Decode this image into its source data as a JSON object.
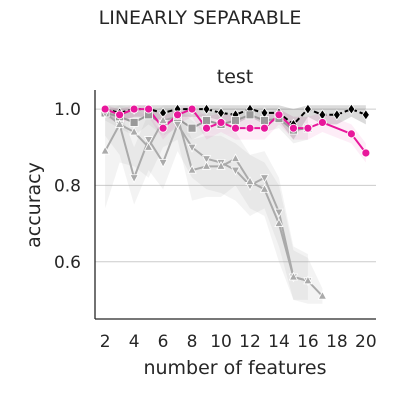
{
  "figure_title": "LINEARLY SEPARABLE",
  "chart_data": {
    "type": "line",
    "title": "test",
    "xlabel": "number of features",
    "ylabel": "accuracy",
    "xlim": [
      1.3,
      20.7
    ],
    "ylim": [
      0.45,
      1.05
    ],
    "xticks": [
      2,
      4,
      6,
      8,
      10,
      12,
      14,
      16,
      18,
      20
    ],
    "yticks": [
      0.6,
      0.8,
      1.0
    ],
    "ytick_labels": [
      "0.6",
      "0.8",
      "1.0"
    ],
    "grid": "horizontal",
    "series": [
      {
        "color": "#000000",
        "marker": "diamond",
        "linestyle": "dashed",
        "x": [
          2,
          3,
          4,
          5,
          6,
          7,
          8,
          9,
          10,
          11,
          12,
          13,
          14,
          15,
          16,
          17,
          18,
          19,
          20
        ],
        "values": [
          1.0,
          0.99,
          1.0,
          1.0,
          0.99,
          1.0,
          1.0,
          1.0,
          0.99,
          0.985,
          1.0,
          0.99,
          0.99,
          0.96,
          1.0,
          0.985,
          0.985,
          1.0,
          0.985
        ],
        "band_lo": [
          0.98,
          0.97,
          0.98,
          0.98,
          0.97,
          0.98,
          0.98,
          0.98,
          0.97,
          0.96,
          0.98,
          0.96,
          0.97,
          0.92,
          0.98,
          0.96,
          0.96,
          0.98,
          0.96
        ],
        "band_hi": [
          1.01,
          1.01,
          1.01,
          1.01,
          1.01,
          1.01,
          1.01,
          1.01,
          1.01,
          1.01,
          1.01,
          1.01,
          1.01,
          1.0,
          1.01,
          1.01,
          1.01,
          1.01,
          1.01
        ]
      },
      {
        "color": "#999999",
        "marker": "square",
        "linestyle": "solid",
        "x": [
          2,
          3,
          4,
          5,
          6,
          7,
          8,
          9,
          10,
          11,
          12,
          13,
          14,
          15,
          16
        ],
        "values": [
          0.99,
          0.98,
          0.965,
          0.985,
          0.96,
          0.975,
          0.95,
          0.97,
          0.96,
          0.97,
          0.985,
          0.97,
          0.975,
          0.945,
          0.95
        ],
        "band_lo": [
          0.97,
          0.95,
          0.93,
          0.96,
          0.93,
          0.95,
          0.92,
          0.94,
          0.93,
          0.94,
          0.96,
          0.94,
          0.95,
          0.91,
          0.92
        ],
        "band_hi": [
          1.0,
          1.0,
          0.99,
          1.0,
          0.99,
          1.0,
          0.98,
          0.99,
          0.99,
          0.99,
          1.0,
          0.99,
          1.0,
          0.98,
          0.98
        ]
      },
      {
        "color": "#aaaaaa",
        "marker": "triangle-down",
        "linestyle": "solid",
        "x": [
          2,
          3,
          4,
          5,
          6,
          7,
          8,
          9,
          10,
          11,
          12,
          13,
          14,
          15,
          16
        ],
        "values": [
          0.99,
          0.96,
          0.82,
          0.92,
          0.86,
          0.96,
          0.9,
          0.87,
          0.86,
          0.84,
          0.8,
          0.82,
          0.73,
          0.56,
          0.55
        ],
        "band_lo": [
          0.93,
          0.88,
          0.75,
          0.84,
          0.79,
          0.89,
          0.82,
          0.79,
          0.78,
          0.76,
          0.72,
          0.74,
          0.64,
          0.5,
          0.5
        ],
        "band_hi": [
          1.01,
          1.0,
          0.9,
          0.99,
          0.93,
          1.0,
          0.97,
          0.94,
          0.93,
          0.91,
          0.88,
          0.89,
          0.82,
          0.64,
          0.62
        ]
      },
      {
        "color": "#aaaaaa",
        "marker": "triangle-up",
        "linestyle": "solid",
        "x": [
          2,
          3,
          4,
          5,
          6,
          7,
          8,
          9,
          10,
          11,
          12,
          13,
          14,
          15,
          16,
          17
        ],
        "values": [
          0.89,
          0.96,
          0.94,
          0.9,
          0.97,
          0.98,
          0.84,
          0.85,
          0.85,
          0.87,
          0.81,
          0.79,
          0.7,
          0.56,
          0.55,
          0.51
        ],
        "band_lo": [
          0.74,
          0.86,
          0.85,
          0.82,
          0.9,
          0.92,
          0.76,
          0.77,
          0.77,
          0.8,
          0.74,
          0.72,
          0.6,
          0.5,
          0.49,
          0.49
        ],
        "band_hi": [
          0.99,
          1.01,
          1.0,
          0.98,
          1.01,
          1.01,
          0.92,
          0.93,
          0.93,
          0.94,
          0.88,
          0.86,
          0.8,
          0.63,
          0.61,
          0.53
        ]
      },
      {
        "color": "#e8179b",
        "marker": "circle",
        "linestyle": "solid",
        "x": [
          2,
          3,
          4,
          5,
          6,
          7,
          8,
          9,
          10,
          11,
          12,
          13,
          14,
          15,
          16,
          17,
          19,
          20
        ],
        "values": [
          1.0,
          0.985,
          1.0,
          1.0,
          0.95,
          0.985,
          1.0,
          0.95,
          0.965,
          0.95,
          0.95,
          0.95,
          0.985,
          0.95,
          0.95,
          0.965,
          0.935,
          0.885
        ],
        "band_lo": [
          0.98,
          0.96,
          0.98,
          0.98,
          0.92,
          0.96,
          0.98,
          0.92,
          0.94,
          0.92,
          0.92,
          0.92,
          0.96,
          0.92,
          0.92,
          0.94,
          0.91,
          0.86
        ],
        "band_hi": [
          1.01,
          1.0,
          1.01,
          1.01,
          0.98,
          1.0,
          1.01,
          0.98,
          0.99,
          0.98,
          0.98,
          0.98,
          1.0,
          0.98,
          0.98,
          0.99,
          0.96,
          0.91
        ]
      }
    ]
  }
}
